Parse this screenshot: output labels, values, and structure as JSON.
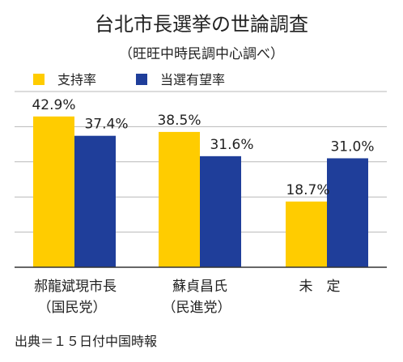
{
  "chart_data": {
    "type": "bar",
    "title": "台北市長選挙の世論調査",
    "subtitle": "（旺旺中時民調中心調べ）",
    "categories": [
      [
        "郝龍斌現市長",
        "（国民党）"
      ],
      [
        "蘇貞昌氏",
        "（民進党）"
      ],
      [
        "未　定",
        ""
      ]
    ],
    "series": [
      {
        "name": "支持率",
        "color": "#FFCC00",
        "values": [
          42.9,
          38.5,
          18.7
        ],
        "labels": [
          "42.9%",
          "38.5%",
          "18.7%"
        ]
      },
      {
        "name": "当選有望率",
        "color": "#1F3E9A",
        "values": [
          37.4,
          31.6,
          31.0
        ],
        "labels": [
          "37.4%",
          "31.6%",
          "31.0%"
        ]
      }
    ],
    "ylim": [
      0,
      50
    ],
    "grid": true,
    "legend": "top-left",
    "source": "出典＝１５日付中国時報"
  }
}
